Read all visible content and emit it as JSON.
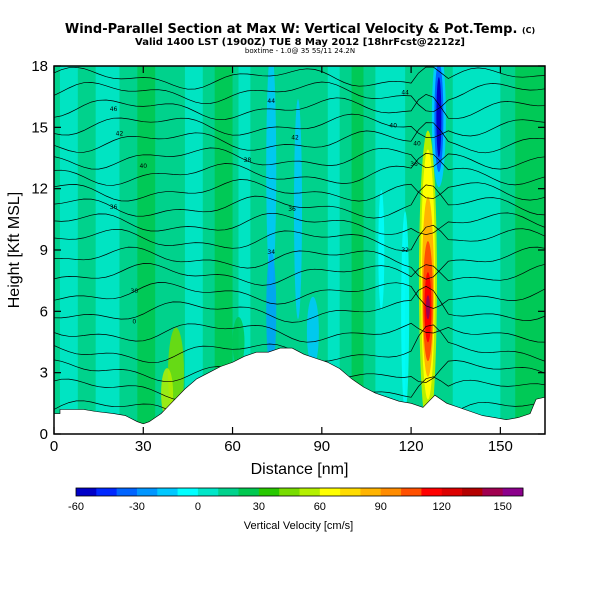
{
  "chart_data": {
    "type": "heatmap",
    "title": "Wind-Parallel Section at Max W: Vertical Velocity & Pot.Temp.",
    "copyright_mark": "(C)",
    "subtitle": "Valid 1400 LST (1900Z) TUE 8 May 2012 [18hrFcst@2212z]",
    "subtitle2": "boxtime - 1.0@ 35 5S/11 24.2N",
    "xlabel": "Distance [nm]",
    "ylabel": "Height [Kft MSL]",
    "xlim": [
      0,
      165
    ],
    "ylim": [
      0,
      18
    ],
    "xticks": [
      "0",
      "30",
      "60",
      "90",
      "120",
      "150"
    ],
    "yticks": [
      "0",
      "3",
      "6",
      "9",
      "12",
      "15",
      "18"
    ],
    "colorbar": {
      "label": "Vertical Velocity [cm/s]",
      "ticks": [
        "-60",
        "-30",
        "0",
        "30",
        "60",
        "90",
        "120",
        "150"
      ],
      "range": [
        -60,
        160
      ],
      "colors": [
        "#0000c8",
        "#0028ff",
        "#0064ff",
        "#0096ff",
        "#00c8ff",
        "#00ffff",
        "#00e6c8",
        "#00d28c",
        "#00c850",
        "#28c800",
        "#78dc00",
        "#b4f000",
        "#ffff00",
        "#ffdc00",
        "#ffb400",
        "#ff8c00",
        "#ff5000",
        "#ff0000",
        "#dc0000",
        "#b40000",
        "#a00050",
        "#8c008c"
      ]
    },
    "contour_labels": [
      "46",
      "44",
      "44",
      "42",
      "42",
      "40",
      "40",
      "40",
      "38",
      "36",
      "36",
      "36",
      "34",
      "32",
      "30",
      "0"
    ],
    "terrain_profile": {
      "x": [
        0,
        2,
        2,
        8,
        10,
        14,
        20,
        24,
        28,
        30,
        32,
        34,
        36,
        38,
        40,
        44,
        48,
        52,
        56,
        60,
        64,
        68,
        72,
        76,
        80,
        84,
        88,
        92,
        96,
        100,
        104,
        108,
        112,
        116,
        120,
        124,
        126,
        128,
        130,
        132,
        136,
        140,
        144,
        148,
        152,
        156,
        160,
        162,
        165
      ],
      "y": [
        1.0,
        1.0,
        1.2,
        1.2,
        1.2,
        1.1,
        1.0,
        0.9,
        0.6,
        0.5,
        0.6,
        0.8,
        1.0,
        1.3,
        1.6,
        2.2,
        2.7,
        3.0,
        3.3,
        3.5,
        3.8,
        4.0,
        4.0,
        4.2,
        4.2,
        3.9,
        3.7,
        3.5,
        3.2,
        2.7,
        2.3,
        2.0,
        1.8,
        1.6,
        1.5,
        1.3,
        1.6,
        1.9,
        1.7,
        1.5,
        1.3,
        1.1,
        0.9,
        0.8,
        0.7,
        0.8,
        1.0,
        1.7,
        1.8
      ]
    },
    "theta_contours_kft": [
      1.2,
      2.2,
      3.1,
      4.0,
      5.0,
      6.0,
      6.9,
      7.8,
      8.6,
      9.5,
      10.3,
      11.1,
      11.9,
      12.7,
      13.5,
      14.3,
      15.1,
      15.9,
      16.7,
      17.4
    ],
    "vv_features": [
      {
        "name": "updraft",
        "x": 126,
        "ymin": 1.5,
        "ymax": 12.5,
        "peak_cm_s": 150
      },
      {
        "name": "downdraft",
        "x": 129,
        "ymin": 11,
        "ymax": 18,
        "peak_cm_s": -60
      },
      {
        "name": "weak downdraft",
        "x": 73,
        "ymin": 2,
        "ymax": 18,
        "peak_cm_s": -25
      },
      {
        "name": "weak downdraft",
        "x": 82,
        "ymin": 4,
        "ymax": 16,
        "peak_cm_s": -20
      },
      {
        "name": "weak updraft",
        "x": 41,
        "ymin": 1,
        "ymax": 7,
        "peak_cm_s": 30
      }
    ]
  }
}
